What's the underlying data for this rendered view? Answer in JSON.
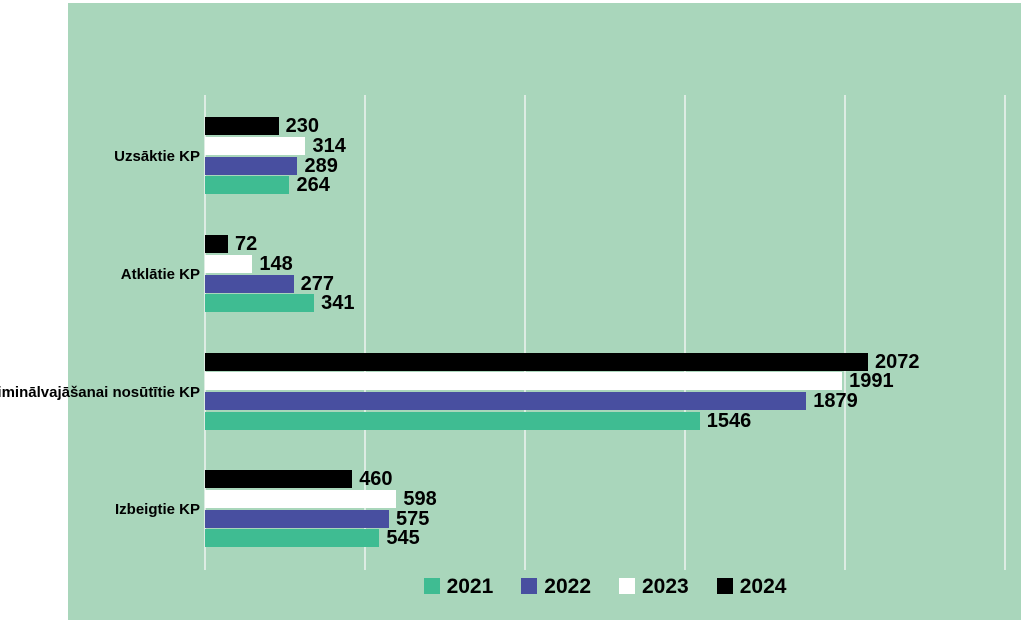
{
  "chart_data": {
    "type": "bar",
    "orientation": "horizontal",
    "title": "",
    "categories": [
      "Uzsāktie KP",
      "Atklātie KP",
      "Kriminālvajāšanai nosūtītie KP",
      "Izbeigtie KP"
    ],
    "series": [
      {
        "name": "2021",
        "color": "#3fbc92",
        "values": [
          264,
          341,
          1546,
          545
        ]
      },
      {
        "name": "2022",
        "color": "#484fa0",
        "values": [
          289,
          277,
          1879,
          575
        ]
      },
      {
        "name": "2023",
        "color": "#ffffff",
        "values": [
          314,
          148,
          1991,
          598
        ]
      },
      {
        "name": "2024",
        "color": "#000000",
        "values": [
          230,
          72,
          2072,
          460
        ]
      }
    ],
    "bar_order_top_to_bottom": [
      "2024",
      "2023",
      "2022",
      "2021"
    ],
    "xlim": [
      0,
      2500
    ],
    "gridline_values": [
      0,
      500,
      1000,
      1500,
      2000,
      2500
    ],
    "grid": true,
    "data_labels": true,
    "legend_position": "bottom",
    "colors": {
      "plot_background": "#a9d6bb",
      "gridline": "#ddece3",
      "label_text": "#000000",
      "page_background": "#ffffff"
    }
  }
}
